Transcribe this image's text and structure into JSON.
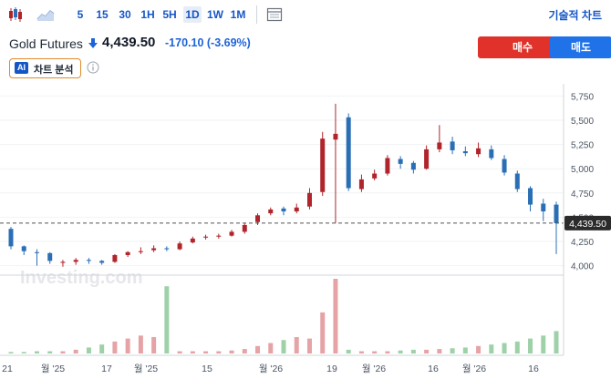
{
  "toolbar": {
    "intervals": [
      "5",
      "15",
      "30",
      "1H",
      "5H",
      "1D",
      "1W",
      "1M"
    ],
    "active_interval": "1D",
    "analysis_label": "기술적 차트",
    "icons": [
      "candlestick-icon",
      "area-chart-icon",
      "table-icon"
    ]
  },
  "instrument": {
    "name": "Gold Futures",
    "price": "4,439.50",
    "change": "-170.10",
    "change_pct": "(-3.69%)",
    "direction": "down"
  },
  "actions": {
    "buy_label": "매수",
    "sell_label": "매도"
  },
  "ai": {
    "badge": "AI",
    "label": "차트 분석"
  },
  "watermark": "Investing.com",
  "colors": {
    "up": "#b0242b",
    "down": "#2a6fb5",
    "accent": "#1556c7",
    "buy": "#e0322b",
    "sell": "#1f72e8",
    "vol_up": "#e6a3a6",
    "vol_down": "#9ed1a8"
  },
  "chart_data": {
    "type": "candlestick",
    "y_ticks": [
      "5,750",
      "5,500",
      "5,250",
      "5,000",
      "4,750",
      "4,500",
      "4,250",
      "4,000"
    ],
    "y_tick_values": [
      5750,
      5500,
      5250,
      5000,
      4750,
      4500,
      4250,
      4000
    ],
    "ylim": [
      3950,
      5800
    ],
    "last_price_label": "4,439.50",
    "last_price": 4439.5,
    "x_ticks": [
      "21",
      "월 '25",
      "17",
      "월 '25",
      "15",
      "월 '26",
      "19",
      "월 '26",
      "16",
      "월 '26",
      "16"
    ],
    "series": {
      "open": [
        4380,
        4200,
        4140,
        4130,
        4030,
        4040,
        4060,
        4050,
        4040,
        4110,
        4140,
        4160,
        4180,
        4170,
        4240,
        4290,
        4300,
        4310,
        4350,
        4450,
        4540,
        4590,
        4560,
        4610,
        4760,
        5300,
        5530,
        4790,
        4900,
        4950,
        5100,
        5060,
        5000,
        5200,
        5280,
        5180,
        5150,
        5200,
        5100,
        4950,
        4800,
        4640,
        4630
      ],
      "close": [
        4200,
        4150,
        4130,
        4050,
        4040,
        4060,
        4050,
        4030,
        4110,
        4140,
        4150,
        4180,
        4170,
        4230,
        4280,
        4300,
        4310,
        4350,
        4420,
        4520,
        4580,
        4560,
        4600,
        4750,
        5310,
        5360,
        4800,
        4890,
        4950,
        5110,
        5050,
        4990,
        5200,
        5270,
        5190,
        5160,
        5210,
        5110,
        4960,
        4790,
        4630,
        4560,
        4439.5
      ],
      "high": [
        4400,
        4210,
        4170,
        4140,
        4060,
        4080,
        4080,
        4060,
        4120,
        4150,
        4190,
        4210,
        4200,
        4250,
        4300,
        4320,
        4330,
        4370,
        4440,
        4540,
        4600,
        4610,
        4640,
        4800,
        5380,
        5670,
        5570,
        4940,
        4990,
        5140,
        5130,
        5080,
        5240,
        5450,
        5330,
        5230,
        5270,
        5240,
        5140,
        4980,
        4820,
        4690,
        4660
      ],
      "low": [
        4170,
        4110,
        4000,
        4020,
        3990,
        4010,
        4020,
        4010,
        4030,
        4090,
        4120,
        4140,
        4150,
        4160,
        4230,
        4270,
        4280,
        4300,
        4330,
        4420,
        4520,
        4520,
        4540,
        4580,
        4720,
        4440,
        4770,
        4760,
        4880,
        4930,
        5000,
        4950,
        4990,
        5170,
        5150,
        5130,
        5120,
        5090,
        4930,
        4760,
        4560,
        4460,
        4120
      ],
      "volume": [
        0.02,
        0.02,
        0.03,
        0.03,
        0.03,
        0.05,
        0.08,
        0.12,
        0.16,
        0.2,
        0.24,
        0.22,
        0.9,
        0.03,
        0.03,
        0.03,
        0.03,
        0.04,
        0.06,
        0.1,
        0.14,
        0.18,
        0.22,
        0.2,
        0.55,
        1.0,
        0.05,
        0.03,
        0.03,
        0.03,
        0.04,
        0.05,
        0.05,
        0.06,
        0.07,
        0.08,
        0.1,
        0.12,
        0.14,
        0.16,
        0.2,
        0.24,
        0.3
      ]
    }
  }
}
